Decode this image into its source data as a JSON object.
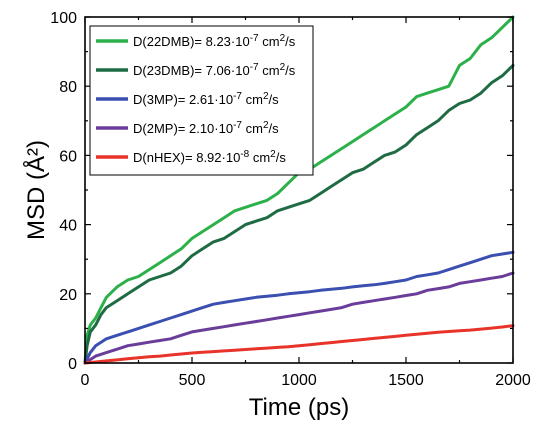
{
  "chart_data": {
    "type": "line",
    "xlabel": "Time (ps)",
    "ylabel": "MSD (Å²)",
    "xlim": [
      0,
      2000
    ],
    "ylim": [
      0,
      100
    ],
    "xticks": [
      0,
      500,
      1000,
      1500,
      2000
    ],
    "yticks": [
      0,
      20,
      40,
      60,
      80,
      100
    ],
    "grid": false,
    "legend_position": "top-left",
    "series": [
      {
        "name": "D(22DMB)= 8.23·10⁻⁷ cm²/s",
        "legend_parts": {
          "base": "D(22DMB)= 8.23·10",
          "exp": "-7",
          "unit": " cm",
          "unit_exp": "2",
          "tail": "/s"
        },
        "color": "#2cb04a",
        "x": [
          0,
          10,
          25,
          50,
          75,
          100,
          150,
          200,
          250,
          300,
          350,
          400,
          450,
          500,
          550,
          600,
          650,
          700,
          750,
          800,
          850,
          900,
          950,
          1000,
          1050,
          1100,
          1150,
          1200,
          1250,
          1300,
          1350,
          1400,
          1450,
          1500,
          1550,
          1600,
          1650,
          1700,
          1750,
          1800,
          1850,
          1900,
          1950,
          2000
        ],
        "y": [
          0,
          8,
          11,
          13,
          16,
          19,
          22,
          24,
          25,
          27,
          29,
          31,
          33,
          36,
          38,
          40,
          42,
          44,
          45,
          46,
          47,
          49,
          52,
          55,
          56,
          58,
          60,
          62,
          64,
          66,
          68,
          70,
          72,
          74,
          77,
          78,
          79,
          80,
          86,
          88,
          92,
          94,
          97,
          100
        ]
      },
      {
        "name": "D(23DMB)= 7.06·10⁻⁷ cm²/s",
        "legend_parts": {
          "base": "D(23DMB)= 7.06·10",
          "exp": "-7",
          "unit": " cm",
          "unit_exp": "2",
          "tail": "/s"
        },
        "color": "#1f6b43",
        "x": [
          0,
          10,
          25,
          50,
          75,
          100,
          150,
          200,
          250,
          300,
          350,
          400,
          450,
          500,
          550,
          600,
          650,
          700,
          750,
          800,
          850,
          900,
          950,
          1000,
          1050,
          1100,
          1150,
          1200,
          1250,
          1300,
          1350,
          1400,
          1450,
          1500,
          1550,
          1600,
          1650,
          1700,
          1750,
          1800,
          1850,
          1900,
          1950,
          2000
        ],
        "y": [
          0,
          5,
          9,
          11,
          14,
          16,
          18,
          20,
          22,
          24,
          25,
          26,
          28,
          31,
          33,
          35,
          36,
          38,
          40,
          41,
          42,
          44,
          45,
          46,
          47,
          49,
          51,
          53,
          55,
          56,
          58,
          60,
          61,
          63,
          66,
          68,
          70,
          73,
          75,
          76,
          78,
          81,
          83,
          86
        ]
      },
      {
        "name": "D(3MP)= 2.61·10⁻⁷ cm²/s",
        "legend_parts": {
          "base": "D(3MP)= 2.61·10",
          "exp": "-7",
          "unit": " cm",
          "unit_exp": "2",
          "tail": "/s"
        },
        "color": "#3a4fb0",
        "x": [
          0,
          25,
          50,
          100,
          150,
          200,
          250,
          300,
          350,
          400,
          450,
          500,
          550,
          600,
          650,
          700,
          750,
          800,
          850,
          900,
          950,
          1000,
          1050,
          1100,
          1150,
          1200,
          1250,
          1300,
          1350,
          1400,
          1450,
          1500,
          1550,
          1600,
          1650,
          1700,
          1750,
          1800,
          1850,
          1900,
          1950,
          2000
        ],
        "y": [
          0,
          3,
          5,
          7,
          8,
          9,
          10,
          11,
          12,
          13,
          14,
          15,
          16,
          17,
          17.5,
          18,
          18.5,
          19,
          19.3,
          19.6,
          20,
          20.3,
          20.6,
          21,
          21.3,
          21.6,
          22,
          22.3,
          22.6,
          23,
          23.5,
          24,
          25,
          25.5,
          26,
          27,
          28,
          29,
          30,
          31,
          31.5,
          32
        ]
      },
      {
        "name": "D(2MP)= 2.10·10⁻⁷ cm²/s",
        "legend_parts": {
          "base": "D(2MP)= 2.10·10",
          "exp": "-7",
          "unit": " cm",
          "unit_exp": "2",
          "tail": "/s"
        },
        "color": "#6a3d9a",
        "x": [
          0,
          25,
          50,
          100,
          150,
          200,
          250,
          300,
          350,
          400,
          450,
          500,
          550,
          600,
          650,
          700,
          750,
          800,
          850,
          900,
          950,
          1000,
          1050,
          1100,
          1150,
          1200,
          1250,
          1300,
          1350,
          1400,
          1450,
          1500,
          1550,
          1600,
          1650,
          1700,
          1750,
          1800,
          1850,
          1900,
          1950,
          2000
        ],
        "y": [
          0,
          1,
          2,
          3,
          4,
          5,
          5.5,
          6,
          6.5,
          7,
          8,
          9,
          9.5,
          10,
          10.5,
          11,
          11.5,
          12,
          12.5,
          13,
          13.5,
          14,
          14.5,
          15,
          15.5,
          16,
          17,
          17.5,
          18,
          18.5,
          19,
          19.5,
          20,
          21,
          21.5,
          22,
          23,
          23.5,
          24,
          24.5,
          25,
          26
        ]
      },
      {
        "name": "D(nHEX)= 8.92·10⁻⁸ cm²/s",
        "legend_parts": {
          "base": "D(nHEX)= 8.92·10",
          "exp": "-8",
          "unit": " cm",
          "unit_exp": "2",
          "tail": "/s"
        },
        "color": "#e8332a",
        "x": [
          0,
          50,
          100,
          150,
          200,
          250,
          300,
          350,
          400,
          450,
          500,
          550,
          600,
          650,
          700,
          750,
          800,
          850,
          900,
          950,
          1000,
          1050,
          1100,
          1150,
          1200,
          1250,
          1300,
          1350,
          1400,
          1450,
          1500,
          1550,
          1600,
          1650,
          1700,
          1750,
          1800,
          1850,
          1900,
          1950,
          2000
        ],
        "y": [
          0,
          0.3,
          0.6,
          0.9,
          1.2,
          1.5,
          1.8,
          2,
          2.3,
          2.6,
          2.9,
          3.1,
          3.3,
          3.5,
          3.7,
          3.9,
          4.1,
          4.3,
          4.5,
          4.7,
          5,
          5.3,
          5.6,
          5.9,
          6.2,
          6.5,
          6.8,
          7.1,
          7.4,
          7.7,
          8,
          8.3,
          8.6,
          8.9,
          9.1,
          9.3,
          9.5,
          9.8,
          10.1,
          10.4,
          10.8
        ]
      }
    ]
  }
}
